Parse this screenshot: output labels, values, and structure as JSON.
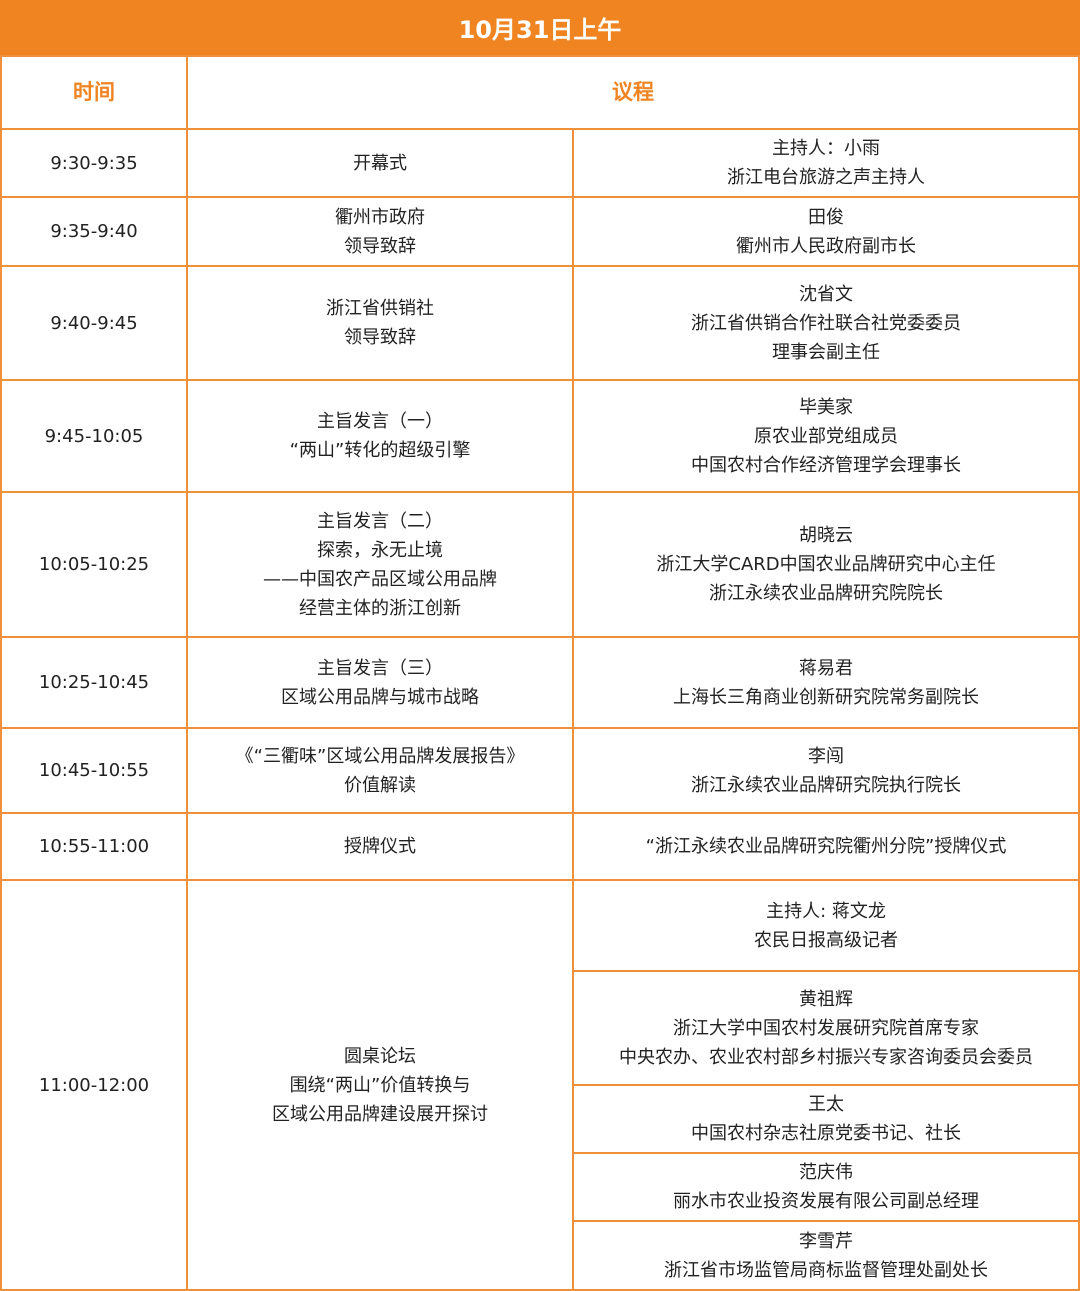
{
  "title": "10月31日上午",
  "headers": {
    "time": "时间",
    "agenda": "议程"
  },
  "colors": {
    "accent": "#ef8421",
    "border": "#f0913a"
  },
  "rows": [
    {
      "time": "9:30-9:35",
      "item": "开幕式",
      "people": [
        "主持人：小雨\n浙江电台旅游之声主持人"
      ]
    },
    {
      "time": "9:35-9:40",
      "item": "衢州市政府\n领导致辞",
      "people": [
        "田俊\n衢州市人民政府副市长"
      ]
    },
    {
      "time": "9:40-9:45",
      "item": "浙江省供销社\n领导致辞",
      "people": [
        "沈省文\n浙江省供销合作社联合社党委委员\n理事会副主任"
      ]
    },
    {
      "time": "9:45-10:05",
      "item": "主旨发言（一）\n“两山”转化的超级引擎",
      "people": [
        "毕美家\n原农业部党组成员\n中国农村合作经济管理学会理事长"
      ]
    },
    {
      "time": "10:05-10:25",
      "item": "主旨发言（二）\n探索，永无止境\n——中国农产品区域公用品牌\n经营主体的浙江创新",
      "people": [
        "胡晓云\n浙江大学CARD中国农业品牌研究中心主任\n浙江永续农业品牌研究院院长"
      ]
    },
    {
      "time": "10:25-10:45",
      "item": "主旨发言（三）\n区域公用品牌与城市战略",
      "people": [
        "蒋易君\n上海长三角商业创新研究院常务副院长"
      ]
    },
    {
      "time": "10:45-10:55",
      "item": "《“三衢味”区域公用品牌发展报告》\n价值解读",
      "people": [
        "李闯\n浙江永续农业品牌研究院执行院长"
      ]
    },
    {
      "time": "10:55-11:00",
      "item": "授牌仪式",
      "people": [
        "“浙江永续农业品牌研究院衢州分院”授牌仪式"
      ]
    },
    {
      "time": "11:00-12:00",
      "item": "圆桌论坛\n围绕“两山”价值转换与\n区域公用品牌建设展开探讨",
      "people": [
        "主持人: 蒋文龙\n农民日报高级记者",
        "黄祖辉\n浙江大学中国农村发展研究院首席专家\n中央农办、农业农村部乡村振兴专家咨询委员会委员",
        "王太\n中国农村杂志社原党委书记、社长",
        "范庆伟\n丽水市农业投资发展有限公司副总经理",
        "李雪芹\n浙江省市场监管局商标监督管理处副处长"
      ]
    }
  ]
}
